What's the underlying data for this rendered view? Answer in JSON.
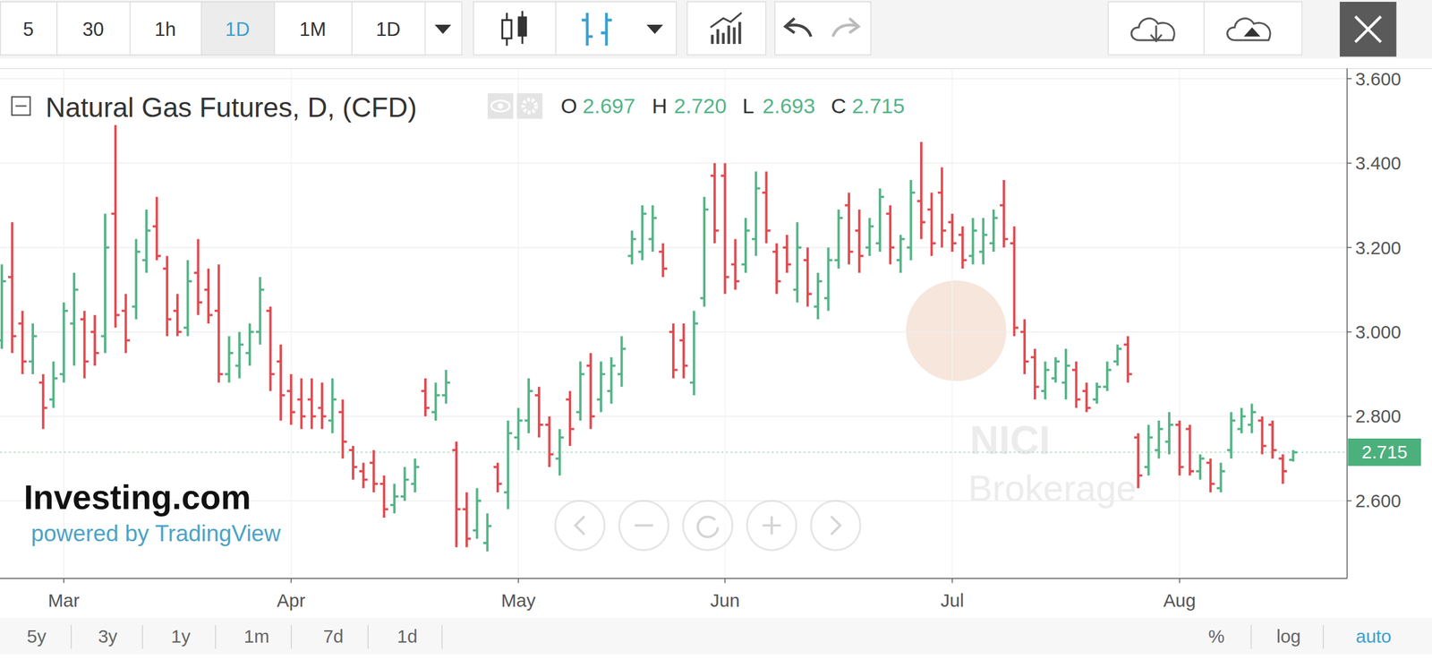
{
  "chart_data": {
    "type": "ohlc",
    "title": "Natural Gas Futures, D, (CFD)",
    "header": {
      "labels": [
        "O",
        "H",
        "L",
        "C"
      ],
      "values": [
        "2.697",
        "2.720",
        "2.693",
        "2.715"
      ]
    },
    "categories": [
      null,
      null,
      null,
      null,
      null,
      null,
      "Mar",
      null,
      null,
      null,
      null,
      null,
      null,
      null,
      null,
      null,
      null,
      null,
      null,
      null,
      null,
      null,
      null,
      null,
      null,
      null,
      null,
      null,
      "Apr",
      null,
      null,
      null,
      null,
      null,
      null,
      null,
      null,
      null,
      null,
      null,
      null,
      null,
      null,
      null,
      null,
      null,
      null,
      null,
      null,
      null,
      "May",
      null,
      null,
      null,
      null,
      null,
      null,
      null,
      null,
      null,
      null,
      null,
      null,
      null,
      null,
      null,
      null,
      null,
      null,
      null,
      "Jun",
      null,
      null,
      null,
      null,
      null,
      null,
      null,
      null,
      null,
      null,
      null,
      null,
      null,
      null,
      null,
      null,
      null,
      null,
      null,
      null,
      null,
      "Jul",
      null,
      null,
      null,
      null,
      null,
      null,
      null,
      null,
      null,
      null,
      null,
      null,
      null,
      null,
      null,
      null,
      null,
      null,
      null,
      null,
      null,
      "Aug",
      null,
      null,
      null,
      null,
      null,
      null,
      null,
      null,
      null,
      null,
      null
    ],
    "open": [
      2.98,
      3.13,
      3.02,
      2.93,
      2.88,
      2.84,
      2.9,
      3.02,
      3.03,
      3.0,
      2.99,
      3.28,
      3.05,
      3.06,
      3.17,
      3.25,
      3.15,
      3.05,
      3.01,
      3.14,
      3.1,
      3.05,
      2.9,
      2.92,
      2.95,
      3.0,
      3.05,
      2.93,
      2.86,
      2.84,
      2.84,
      2.82,
      2.79,
      2.81,
      2.72,
      2.67,
      2.69,
      2.64,
      2.59,
      2.61,
      2.64,
      2.86,
      2.81,
      2.85,
      2.72,
      2.58,
      2.53,
      2.5,
      2.68,
      2.62,
      2.75,
      2.79,
      2.85,
      2.78,
      2.7,
      2.84,
      2.81,
      2.92,
      2.84,
      2.86,
      2.9,
      3.18,
      3.19,
      3.22,
      3.19,
      3.0,
      2.98,
      2.88,
      3.08,
      3.37,
      3.37,
      3.16,
      3.16,
      3.22,
      3.33,
      3.19,
      3.2,
      3.1,
      3.17,
      3.06,
      3.08,
      3.17,
      3.3,
      3.24,
      3.2,
      3.21,
      3.28,
      3.17,
      3.2,
      3.31,
      3.29,
      3.33,
      3.26,
      3.23,
      3.18,
      3.19,
      3.21,
      3.3,
      3.21,
      3.0,
      2.94,
      2.86,
      2.89,
      2.88,
      2.91,
      2.86,
      2.84,
      2.87,
      2.93,
      2.97,
      2.75,
      2.68,
      2.72,
      2.74,
      2.78,
      2.77,
      2.67,
      2.69,
      2.63,
      2.72,
      2.77,
      2.78,
      2.79,
      2.78,
      2.7,
      2.697
    ],
    "high": [
      3.16,
      3.26,
      3.05,
      3.02,
      2.9,
      2.93,
      3.07,
      3.14,
      3.05,
      3.04,
      3.28,
      3.49,
      3.09,
      3.22,
      3.29,
      3.32,
      3.18,
      3.09,
      3.17,
      3.22,
      3.15,
      3.16,
      2.99,
      3.0,
      3.02,
      3.13,
      3.06,
      2.97,
      2.9,
      2.89,
      2.89,
      2.88,
      2.89,
      2.84,
      2.73,
      2.69,
      2.72,
      2.66,
      2.64,
      2.68,
      2.7,
      2.89,
      2.88,
      2.91,
      2.74,
      2.62,
      2.63,
      2.57,
      2.69,
      2.79,
      2.82,
      2.89,
      2.87,
      2.8,
      2.77,
      2.86,
      2.93,
      2.95,
      2.93,
      2.94,
      2.99,
      3.24,
      3.3,
      3.3,
      3.21,
      3.02,
      3.02,
      3.05,
      3.32,
      3.4,
      3.4,
      3.22,
      3.27,
      3.38,
      3.38,
      3.21,
      3.23,
      3.26,
      3.2,
      3.14,
      3.2,
      3.29,
      3.33,
      3.29,
      3.27,
      3.34,
      3.3,
      3.23,
      3.36,
      3.45,
      3.33,
      3.39,
      3.28,
      3.25,
      3.27,
      3.27,
      3.29,
      3.36,
      3.25,
      3.03,
      2.96,
      2.93,
      2.94,
      2.96,
      2.93,
      2.88,
      2.88,
      2.93,
      2.97,
      2.99,
      2.76,
      2.78,
      2.79,
      2.81,
      2.79,
      2.78,
      2.71,
      2.7,
      2.69,
      2.81,
      2.82,
      2.83,
      2.8,
      2.79,
      2.71,
      2.72
    ],
    "low": [
      2.96,
      2.95,
      2.9,
      2.9,
      2.77,
      2.82,
      2.88,
      2.92,
      2.89,
      2.92,
      2.95,
      3.01,
      2.95,
      3.03,
      3.14,
      3.17,
      2.99,
      2.99,
      2.99,
      3.04,
      3.02,
      2.88,
      2.88,
      2.89,
      2.92,
      2.97,
      2.86,
      2.79,
      2.78,
      2.77,
      2.77,
      2.77,
      2.76,
      2.7,
      2.65,
      2.63,
      2.62,
      2.56,
      2.57,
      2.6,
      2.62,
      2.8,
      2.79,
      2.83,
      2.49,
      2.49,
      2.51,
      2.48,
      2.62,
      2.58,
      2.72,
      2.76,
      2.75,
      2.68,
      2.66,
      2.73,
      2.79,
      2.77,
      2.81,
      2.83,
      2.87,
      3.16,
      3.17,
      3.19,
      3.13,
      2.89,
      2.89,
      2.85,
      3.06,
      3.21,
      3.09,
      3.1,
      3.14,
      3.18,
      3.21,
      3.09,
      3.14,
      3.07,
      3.06,
      3.03,
      3.05,
      3.15,
      3.16,
      3.14,
      3.18,
      3.19,
      3.16,
      3.14,
      3.17,
      3.22,
      3.18,
      3.2,
      3.19,
      3.15,
      3.16,
      3.16,
      3.19,
      3.2,
      2.99,
      2.9,
      2.84,
      2.84,
      2.88,
      2.84,
      2.82,
      2.81,
      2.83,
      2.86,
      2.92,
      2.88,
      2.63,
      2.66,
      2.7,
      2.71,
      2.66,
      2.66,
      2.65,
      2.62,
      2.62,
      2.7,
      2.76,
      2.76,
      2.71,
      2.7,
      2.64,
      2.693
    ],
    "close": [
      3.12,
      2.99,
      2.93,
      2.99,
      2.82,
      2.89,
      3.05,
      3.1,
      2.93,
      2.95,
      3.2,
      3.04,
      2.98,
      3.19,
      3.24,
      3.18,
      3.03,
      3.0,
      3.12,
      3.07,
      3.04,
      2.9,
      2.95,
      2.97,
      3.0,
      3.1,
      2.9,
      2.85,
      2.81,
      2.8,
      2.8,
      2.8,
      2.84,
      2.74,
      2.68,
      2.65,
      2.64,
      2.58,
      2.61,
      2.65,
      2.68,
      2.82,
      2.85,
      2.88,
      2.58,
      2.51,
      2.6,
      2.54,
      2.64,
      2.76,
      2.79,
      2.86,
      2.78,
      2.71,
      2.75,
      2.77,
      2.9,
      2.8,
      2.9,
      2.92,
      2.96,
      3.22,
      3.28,
      3.27,
      3.15,
      2.91,
      2.92,
      3.02,
      3.29,
      3.24,
      3.13,
      3.12,
      3.24,
      3.34,
      3.24,
      3.12,
      3.16,
      3.2,
      3.09,
      3.12,
      3.17,
      3.27,
      3.19,
      3.18,
      3.25,
      3.32,
      3.2,
      3.22,
      3.33,
      3.26,
      3.21,
      3.24,
      3.21,
      3.17,
      3.24,
      3.23,
      3.27,
      3.22,
      3.01,
      2.93,
      2.87,
      2.91,
      2.93,
      2.92,
      2.84,
      2.82,
      2.87,
      2.91,
      2.96,
      2.9,
      2.66,
      2.75,
      2.77,
      2.78,
      2.68,
      2.67,
      2.7,
      2.64,
      2.67,
      2.79,
      2.8,
      2.81,
      2.73,
      2.72,
      2.67,
      2.715
    ],
    "ylim": [
      2.416,
      3.624
    ],
    "yticks": [
      {
        "value": 2.6,
        "label": "2.600"
      },
      {
        "value": 2.8,
        "label": "2.800"
      },
      {
        "value": 3.0,
        "label": "3.000"
      },
      {
        "value": 3.2,
        "label": "3.200"
      },
      {
        "value": 3.4,
        "label": "3.400"
      },
      {
        "value": 3.6,
        "label": "3.600"
      }
    ],
    "grid": true,
    "last_price": {
      "value": 2.715,
      "label": "2.715"
    }
  },
  "toolbar": {
    "intervals": [
      "5",
      "30",
      "1h",
      "1D",
      "1M",
      "1D"
    ]
  },
  "range_buttons": [
    "5y",
    "3y",
    "1y",
    "1m",
    "7d",
    "1d"
  ],
  "scale_buttons": [
    "%",
    "log",
    "auto"
  ],
  "watermarks": {
    "brand": "Investing.com",
    "powered": "powered by TradingView",
    "broker": [
      "NICI",
      "Brokerage"
    ]
  }
}
